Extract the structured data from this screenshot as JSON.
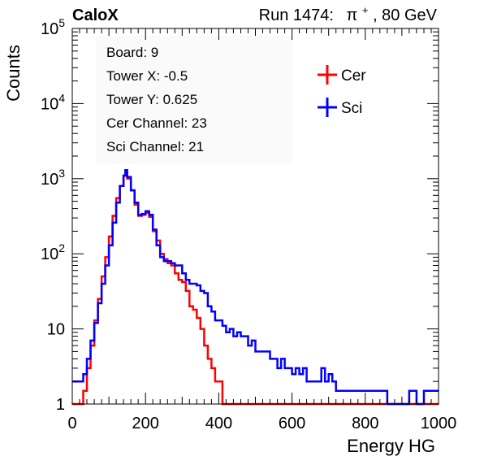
{
  "header": {
    "experiment": "CaloX",
    "run_label": "Run 1474:",
    "beam_particle": "π",
    "beam_charge": "+",
    "beam_energy": ", 80 GeV"
  },
  "info_box": [
    "Board: 9",
    "Tower X: -0.5",
    "Tower Y: 0.625",
    "Cer Channel: 23",
    "Sci Channel: 21"
  ],
  "chart_data": {
    "type": "line",
    "title": "",
    "xlabel": "Energy HG",
    "ylabel": "Counts",
    "xlim": [
      0,
      1000
    ],
    "ylim": [
      1,
      100000
    ],
    "y_scale": "log",
    "grid": false,
    "legend_position": "top-right",
    "x_ticks": [
      "0",
      "200",
      "400",
      "600",
      "800",
      "1000"
    ],
    "y_ticks": [
      {
        "value": 1,
        "base": "1",
        "exp": ""
      },
      {
        "value": 10,
        "base": "10",
        "exp": ""
      },
      {
        "value": 100,
        "base": "10",
        "exp": "2"
      },
      {
        "value": 1000,
        "base": "10",
        "exp": "3"
      },
      {
        "value": 10000,
        "base": "10",
        "exp": "4"
      },
      {
        "value": 100000,
        "base": "10",
        "exp": "5"
      }
    ],
    "series": [
      {
        "name": "Cer",
        "color": "#ff0000",
        "points": [
          [
            0,
            1
          ],
          [
            20,
            1
          ],
          [
            30,
            1.5
          ],
          [
            40,
            3
          ],
          [
            50,
            6
          ],
          [
            60,
            13
          ],
          [
            70,
            25
          ],
          [
            80,
            50
          ],
          [
            90,
            90
          ],
          [
            100,
            170
          ],
          [
            110,
            320
          ],
          [
            120,
            550
          ],
          [
            130,
            800
          ],
          [
            140,
            1100
          ],
          [
            145,
            1250
          ],
          [
            150,
            1000
          ],
          [
            160,
            700
          ],
          [
            170,
            450
          ],
          [
            180,
            320
          ],
          [
            190,
            330
          ],
          [
            200,
            350
          ],
          [
            210,
            310
          ],
          [
            220,
            200
          ],
          [
            230,
            150
          ],
          [
            240,
            100
          ],
          [
            250,
            85
          ],
          [
            260,
            75
          ],
          [
            270,
            70
          ],
          [
            280,
            55
          ],
          [
            290,
            45
          ],
          [
            300,
            42
          ],
          [
            310,
            32
          ],
          [
            320,
            20
          ],
          [
            330,
            18
          ],
          [
            340,
            14
          ],
          [
            350,
            10
          ],
          [
            360,
            6
          ],
          [
            370,
            4
          ],
          [
            380,
            3
          ],
          [
            390,
            2
          ],
          [
            400,
            2
          ],
          [
            410,
            1
          ],
          [
            420,
            1
          ],
          [
            1000,
            1
          ]
        ]
      },
      {
        "name": "Sci",
        "color": "#0000ff",
        "points": [
          [
            0,
            2
          ],
          [
            20,
            2
          ],
          [
            30,
            2.5
          ],
          [
            40,
            4
          ],
          [
            50,
            7
          ],
          [
            60,
            12
          ],
          [
            70,
            22
          ],
          [
            80,
            40
          ],
          [
            90,
            70
          ],
          [
            100,
            130
          ],
          [
            110,
            260
          ],
          [
            120,
            480
          ],
          [
            130,
            800
          ],
          [
            140,
            1100
          ],
          [
            145,
            1300
          ],
          [
            150,
            1050
          ],
          [
            160,
            700
          ],
          [
            170,
            480
          ],
          [
            180,
            330
          ],
          [
            190,
            340
          ],
          [
            200,
            370
          ],
          [
            210,
            330
          ],
          [
            220,
            210
          ],
          [
            230,
            130
          ],
          [
            240,
            90
          ],
          [
            250,
            80
          ],
          [
            260,
            80
          ],
          [
            270,
            75
          ],
          [
            280,
            70
          ],
          [
            290,
            70
          ],
          [
            300,
            55
          ],
          [
            310,
            45
          ],
          [
            320,
            40
          ],
          [
            330,
            40
          ],
          [
            340,
            38
          ],
          [
            350,
            32
          ],
          [
            360,
            30
          ],
          [
            370,
            20
          ],
          [
            380,
            17
          ],
          [
            390,
            13
          ],
          [
            400,
            13
          ],
          [
            410,
            11
          ],
          [
            420,
            9
          ],
          [
            430,
            10
          ],
          [
            440,
            8
          ],
          [
            450,
            9
          ],
          [
            460,
            8
          ],
          [
            470,
            8
          ],
          [
            480,
            6
          ],
          [
            490,
            7
          ],
          [
            500,
            5
          ],
          [
            510,
            5
          ],
          [
            520,
            5
          ],
          [
            530,
            5
          ],
          [
            540,
            4
          ],
          [
            550,
            4
          ],
          [
            560,
            3
          ],
          [
            570,
            4
          ],
          [
            580,
            3
          ],
          [
            590,
            3
          ],
          [
            600,
            2.5
          ],
          [
            610,
            3
          ],
          [
            620,
            2.5
          ],
          [
            630,
            3
          ],
          [
            640,
            2
          ],
          [
            650,
            2
          ],
          [
            660,
            2
          ],
          [
            670,
            2
          ],
          [
            680,
            3
          ],
          [
            690,
            2
          ],
          [
            700,
            2.5
          ],
          [
            710,
            2
          ],
          [
            720,
            1.5
          ],
          [
            730,
            1.5
          ],
          [
            740,
            1.5
          ],
          [
            750,
            1.5
          ],
          [
            760,
            1.5
          ],
          [
            770,
            1.5
          ],
          [
            780,
            1.5
          ],
          [
            790,
            1.5
          ],
          [
            800,
            1.5
          ],
          [
            820,
            1.5
          ],
          [
            840,
            1.5
          ],
          [
            860,
            1
          ],
          [
            880,
            1
          ],
          [
            900,
            1
          ],
          [
            920,
            1.5
          ],
          [
            940,
            1
          ],
          [
            960,
            1.5
          ],
          [
            980,
            1.5
          ],
          [
            1000,
            1.5
          ]
        ]
      }
    ]
  }
}
